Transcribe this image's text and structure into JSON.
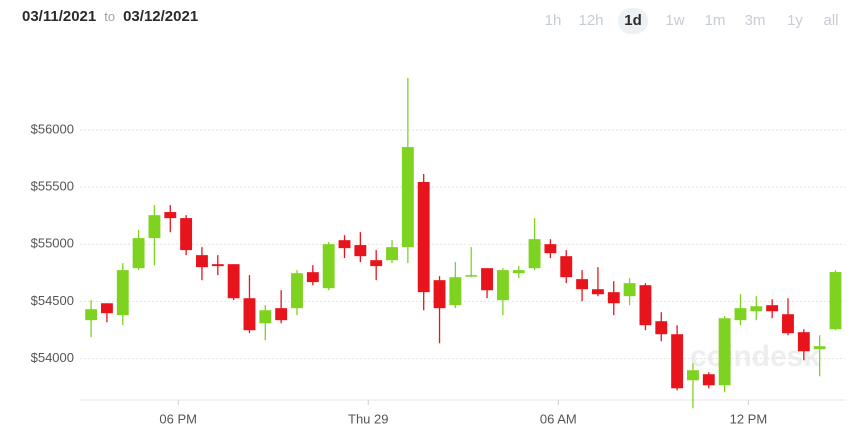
{
  "header": {
    "from": "03/11/2021",
    "to_word": "to",
    "to": "03/12/2021",
    "ranges": [
      "1h",
      "12h",
      "1d",
      "1w",
      "1m",
      "3m",
      "1y",
      "all"
    ],
    "selected": 2
  },
  "chart_data": {
    "type": "candlestick",
    "watermark": "coindesk",
    "up_color": "#7ed321",
    "down_color": "#e8141c",
    "open": [
      54336,
      54484,
      54380,
      54791,
      55054,
      55282,
      55229,
      54905,
      54826,
      54826,
      54528,
      54309,
      54441,
      54441,
      54756,
      54616,
      55036,
      54993,
      54861,
      54861,
      54975,
      55545,
      54686,
      54467,
      54721,
      54791,
      54511,
      54747,
      54791,
      55001,
      54896,
      54695,
      54607,
      54581,
      54546,
      54642,
      54327,
      54213,
      53810,
      53863,
      53766,
      54336,
      54414,
      54467,
      54388,
      54231,
      54082,
      54257
    ],
    "high": [
      54511,
      54484,
      54835,
      55124,
      55343,
      55343,
      55255,
      54975,
      54905,
      54826,
      54730,
      54467,
      54598,
      54774,
      54817,
      55019,
      55080,
      55106,
      54949,
      55036,
      56456,
      55615,
      54721,
      54844,
      54975,
      54791,
      54791,
      54809,
      55229,
      55045,
      54949,
      54774,
      54800,
      54677,
      54703,
      54660,
      54406,
      54292,
      53959,
      53880,
      54371,
      54563,
      54546,
      54519,
      54528,
      54257,
      54204,
      54774
    ],
    "low": [
      54187,
      54318,
      54292,
      54774,
      54817,
      55106,
      54905,
      54686,
      54730,
      54511,
      54222,
      54160,
      54309,
      54380,
      54642,
      54598,
      54879,
      54844,
      54686,
      54835,
      54835,
      54423,
      54134,
      54441,
      54712,
      54528,
      54380,
      54703,
      54774,
      54879,
      54660,
      54502,
      54546,
      54380,
      54467,
      54248,
      54152,
      53722,
      53565,
      53740,
      53705,
      54292,
      54336,
      54353,
      54204,
      53985,
      53845,
      54248
    ],
    "close": [
      54432,
      54397,
      54774,
      55054,
      55255,
      55229,
      54949,
      54800,
      54809,
      54528,
      54248,
      54423,
      54336,
      54747,
      54669,
      55001,
      54966,
      54896,
      54809,
      54975,
      55851,
      54581,
      54441,
      54712,
      54730,
      54598,
      54774,
      54774,
      55045,
      54922,
      54712,
      54607,
      54563,
      54484,
      54660,
      54292,
      54213,
      53740,
      53898,
      53766,
      54353,
      54441,
      54458,
      54414,
      54222,
      54064,
      54108,
      54757
    ],
    "ylim": [
      53550,
      56525
    ],
    "yticks": [
      {
        "value": 54000,
        "label": "$54000"
      },
      {
        "value": 54500,
        "label": "$54500"
      },
      {
        "value": 55000,
        "label": "$55000"
      },
      {
        "value": 55500,
        "label": "$55500"
      },
      {
        "value": 56000,
        "label": "$56000"
      }
    ],
    "xlim": [
      -0.7,
      47.6
    ],
    "xticks": [
      {
        "value": 5.5,
        "label": "06 PM"
      },
      {
        "value": 17.5,
        "label": "Thu 29"
      },
      {
        "value": 29.5,
        "label": "06 AM"
      },
      {
        "value": 41.5,
        "label": "12 PM"
      }
    ],
    "grid": true
  }
}
